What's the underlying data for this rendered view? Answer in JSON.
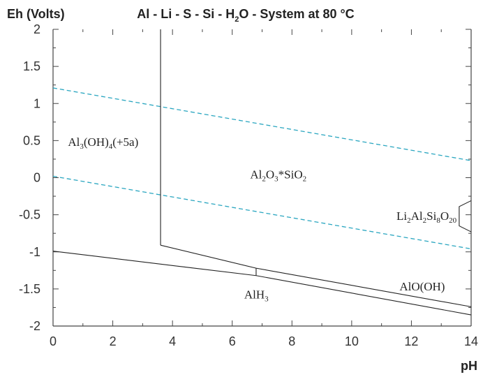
{
  "chart_data": {
    "type": "line",
    "title": "Al - Li - S - Si - H2O - System at 80 °C",
    "title_parts": [
      "Al - Li - S - Si - H",
      "2",
      "O - System at 80 °C"
    ],
    "xlabel": "pH",
    "ylabel": "Eh (Volts)",
    "xlim": [
      0,
      14
    ],
    "ylim": [
      -2,
      2
    ],
    "x_ticks": [
      "0",
      "2",
      "4",
      "6",
      "8",
      "10",
      "12",
      "14"
    ],
    "y_ticks": [
      "2",
      "1.5",
      "1",
      "0.5",
      "0",
      "-0.5",
      "-1",
      "-1.5",
      "-2"
    ],
    "grid": false,
    "boundaries": [
      {
        "name": "vertical",
        "points": [
          [
            3.6,
            2.0
          ],
          [
            3.6,
            -0.91
          ]
        ]
      },
      {
        "name": "al2o3-lower",
        "points": [
          [
            3.6,
            -0.91
          ],
          [
            6.8,
            -1.22
          ],
          [
            14.0,
            -1.74
          ]
        ]
      },
      {
        "name": "alh3-upper",
        "points": [
          [
            0.0,
            -0.99
          ],
          [
            6.8,
            -1.32
          ],
          [
            14.0,
            -1.85
          ]
        ]
      },
      {
        "name": "tick-6.8",
        "points": [
          [
            6.8,
            -1.22
          ],
          [
            6.8,
            -1.32
          ]
        ]
      },
      {
        "name": "li-region",
        "points": [
          [
            14.0,
            -0.31
          ],
          [
            13.6,
            -0.39
          ],
          [
            13.6,
            -0.65
          ],
          [
            14.0,
            -0.73
          ]
        ]
      }
    ],
    "water_lines": {
      "color": "#2aa6c0",
      "lines": [
        {
          "name": "upper",
          "x": [
            0,
            14
          ],
          "y": [
            1.21,
            0.23
          ]
        },
        {
          "name": "lower",
          "x": [
            0,
            14
          ],
          "y": [
            0.02,
            -0.96
          ]
        }
      ]
    },
    "region_labels": [
      {
        "name": "al3oh4",
        "parts": [
          [
            "Al",
            ""
          ],
          [
            "3",
            "sub"
          ],
          [
            "(OH)",
            ""
          ],
          [
            "4",
            "sub"
          ],
          [
            "(+5a)",
            ""
          ]
        ],
        "at": [
          0.5,
          0.43
        ]
      },
      {
        "name": "al2o3sio2",
        "parts": [
          [
            "Al",
            ""
          ],
          [
            "2",
            "sub"
          ],
          [
            "O",
            ""
          ],
          [
            "3",
            "sub"
          ],
          [
            "*SiO",
            ""
          ],
          [
            "2",
            "sub"
          ]
        ],
        "at": [
          6.6,
          -0.01
        ]
      },
      {
        "name": "li2al2si8o20",
        "parts": [
          [
            "Li",
            ""
          ],
          [
            "2",
            "sub"
          ],
          [
            "Al",
            ""
          ],
          [
            "2",
            "sub"
          ],
          [
            "Si",
            ""
          ],
          [
            "8",
            "sub"
          ],
          [
            "O",
            ""
          ],
          [
            "20",
            "sub"
          ]
        ],
        "at": [
          11.5,
          -0.57
        ]
      },
      {
        "name": "aloh",
        "parts": [
          [
            "AlO(OH)",
            ""
          ]
        ],
        "at": [
          11.6,
          -1.52
        ]
      },
      {
        "name": "alh3",
        "parts": [
          [
            "AlH",
            ""
          ],
          [
            "3",
            "sub"
          ]
        ],
        "at": [
          6.4,
          -1.63
        ]
      }
    ],
    "colors": {
      "boundary": "#222222",
      "axis": "#444444"
    }
  }
}
